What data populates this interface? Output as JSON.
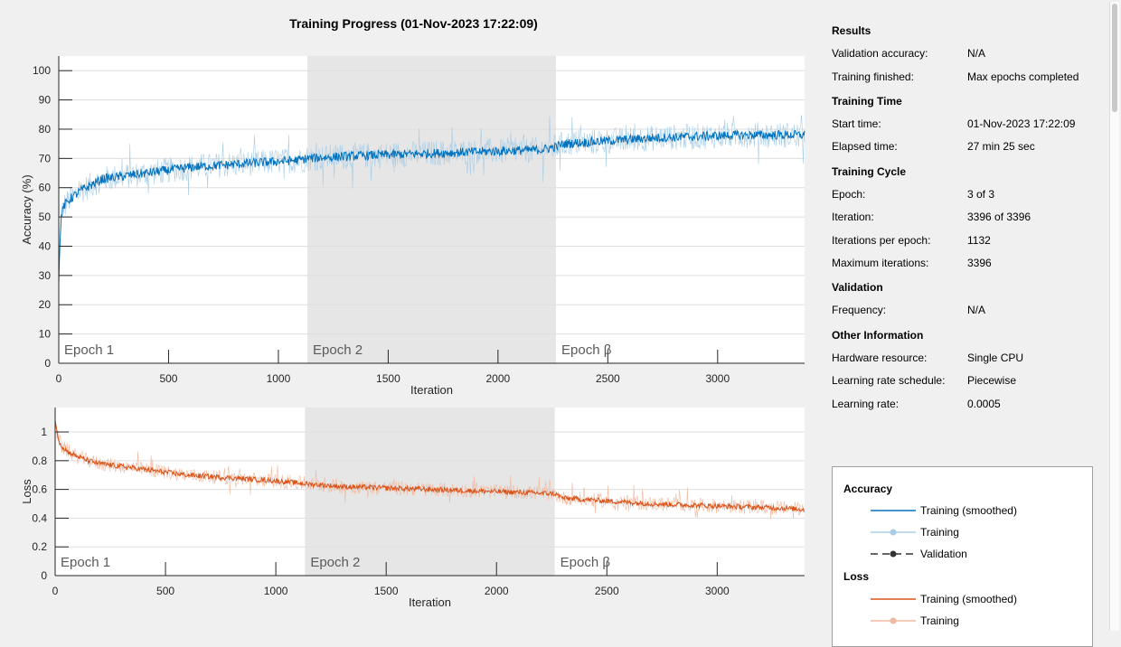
{
  "title": "Training Progress (01-Nov-2023 17:22:09)",
  "colors": {
    "accuracy_smoothed": "#0072bd",
    "accuracy_raw": "#a9cde6",
    "loss_smoothed": "#d95319",
    "loss_raw": "#f0b9a0",
    "validation": "#333333",
    "epoch_shade": "#e6e6e6",
    "plot_bg": "#ffffff",
    "window_bg": "#f0f0f0"
  },
  "chart_data": [
    {
      "type": "line",
      "name": "accuracy",
      "ylabel": "Accuracy (%)",
      "xlabel": "Iteration",
      "xlim": [
        0,
        3396
      ],
      "ylim": [
        0,
        105
      ],
      "xticks": [
        0,
        500,
        1000,
        1500,
        2000,
        2500,
        3000
      ],
      "yticks": [
        0,
        10,
        20,
        30,
        40,
        50,
        60,
        70,
        80,
        90,
        100
      ],
      "epochs": [
        {
          "label": "Epoch 1",
          "start": 0,
          "end": 1132
        },
        {
          "label": "Epoch 2",
          "start": 1132,
          "end": 2264
        },
        {
          "label": "Epoch β",
          "start": 2264,
          "end": 3396
        }
      ],
      "series": [
        {
          "name": "Training (smoothed)",
          "x": [
            0,
            10,
            25,
            50,
            100,
            150,
            200,
            300,
            400,
            500,
            600,
            700,
            800,
            900,
            1000,
            1100,
            1132,
            1250,
            1400,
            1600,
            1800,
            2000,
            2200,
            2264,
            2300,
            2500,
            2700,
            2900,
            3100,
            3300,
            3396
          ],
          "values": [
            28,
            50,
            54,
            56,
            59,
            61,
            63,
            64,
            65,
            66,
            67,
            67.5,
            68,
            68.5,
            69,
            69.5,
            70,
            70.5,
            71,
            71.5,
            72,
            72.5,
            73,
            74,
            75,
            76,
            77,
            77.5,
            78,
            78,
            78
          ]
        }
      ]
    },
    {
      "type": "line",
      "name": "loss",
      "ylabel": "Loss",
      "xlabel": "Iteration",
      "xlim": [
        0,
        3396
      ],
      "ylim": [
        0,
        1.17
      ],
      "xticks": [
        0,
        500,
        1000,
        1500,
        2000,
        2500,
        3000
      ],
      "yticks": [
        0,
        0.2,
        0.4,
        0.6,
        0.8,
        1
      ],
      "epochs": [
        {
          "label": "Epoch 1",
          "start": 0,
          "end": 1132
        },
        {
          "label": "Epoch 2",
          "start": 1132,
          "end": 2264
        },
        {
          "label": "Epoch β",
          "start": 2264,
          "end": 3396
        }
      ],
      "series": [
        {
          "name": "Training (smoothed)",
          "x": [
            0,
            10,
            30,
            60,
            100,
            150,
            200,
            300,
            400,
            500,
            600,
            700,
            800,
            900,
            1000,
            1132,
            1300,
            1500,
            1700,
            1900,
            2100,
            2264,
            2300,
            2500,
            2700,
            2900,
            3100,
            3300,
            3396
          ],
          "values": [
            1.1,
            0.97,
            0.9,
            0.86,
            0.83,
            0.8,
            0.78,
            0.76,
            0.74,
            0.72,
            0.7,
            0.69,
            0.68,
            0.67,
            0.66,
            0.64,
            0.62,
            0.61,
            0.6,
            0.59,
            0.58,
            0.57,
            0.54,
            0.52,
            0.5,
            0.49,
            0.48,
            0.47,
            0.46
          ]
        }
      ]
    }
  ],
  "results": {
    "heading": "Results",
    "validation_accuracy_label": "Validation accuracy:",
    "validation_accuracy_value": "N/A",
    "training_finished_label": "Training finished:",
    "training_finished_value": "Max epochs completed"
  },
  "training_time": {
    "heading": "Training Time",
    "start_time_label": "Start time:",
    "start_time_value": "01-Nov-2023 17:22:09",
    "elapsed_label": "Elapsed time:",
    "elapsed_value": "27 min 25 sec"
  },
  "training_cycle": {
    "heading": "Training Cycle",
    "epoch_label": "Epoch:",
    "epoch_value": "3 of 3",
    "iteration_label": "Iteration:",
    "iteration_value": "3396 of 3396",
    "iter_per_epoch_label": "Iterations per epoch:",
    "iter_per_epoch_value": "1132",
    "max_iter_label": "Maximum iterations:",
    "max_iter_value": "3396"
  },
  "validation": {
    "heading": "Validation",
    "frequency_label": "Frequency:",
    "frequency_value": "N/A"
  },
  "other_info": {
    "heading": "Other Information",
    "hardware_label": "Hardware resource:",
    "hardware_value": "Single CPU",
    "lr_schedule_label": "Learning rate schedule:",
    "lr_schedule_value": "Piecewise",
    "lr_label": "Learning rate:",
    "lr_value": "0.0005"
  },
  "legend": {
    "accuracy_heading": "Accuracy",
    "acc_smoothed": "Training (smoothed)",
    "acc_training": "Training",
    "acc_validation": "Validation",
    "loss_heading": "Loss",
    "loss_smoothed": "Training (smoothed)",
    "loss_training": "Training"
  }
}
